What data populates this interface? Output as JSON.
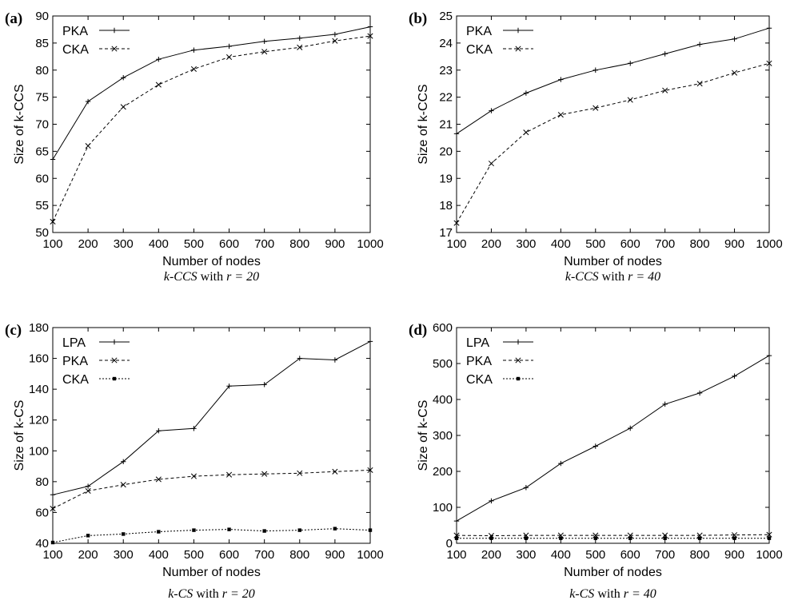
{
  "chart_data": [
    {
      "panel": "(a)",
      "type": "line",
      "categories": [
        "100",
        "200",
        "300",
        "400",
        "500",
        "600",
        "700",
        "800",
        "900",
        "1000"
      ],
      "x": [
        100,
        200,
        300,
        400,
        500,
        600,
        700,
        800,
        900,
        1000
      ],
      "xlim": [
        100,
        1000
      ],
      "ylim": [
        50,
        90
      ],
      "xticks": [
        100,
        200,
        300,
        400,
        500,
        600,
        700,
        800,
        900,
        1000
      ],
      "yticks": [
        50,
        55,
        60,
        65,
        70,
        75,
        80,
        85,
        90
      ],
      "xlabel": "Number of nodes",
      "ylabel": "Size of k-CCS",
      "caption": {
        "math1": "k-CCS",
        "text": " with ",
        "math2": "r = 20"
      },
      "legend_position": "top-left",
      "grid": false,
      "series": [
        {
          "name": "PKA",
          "style": "solid",
          "marker": "plus",
          "values": [
            63.5,
            74.2,
            78.6,
            82.0,
            83.7,
            84.4,
            85.3,
            85.9,
            86.6,
            88.0
          ]
        },
        {
          "name": "CKA",
          "style": "dashed",
          "marker": "x",
          "values": [
            52.0,
            66.0,
            73.2,
            77.3,
            80.2,
            82.4,
            83.4,
            84.2,
            85.4,
            86.3
          ]
        }
      ]
    },
    {
      "panel": "(b)",
      "type": "line",
      "categories": [
        "100",
        "200",
        "300",
        "400",
        "500",
        "600",
        "700",
        "800",
        "900",
        "1000"
      ],
      "x": [
        100,
        200,
        300,
        400,
        500,
        600,
        700,
        800,
        900,
        1000
      ],
      "xlim": [
        100,
        1000
      ],
      "ylim": [
        17,
        25
      ],
      "xticks": [
        100,
        200,
        300,
        400,
        500,
        600,
        700,
        800,
        900,
        1000
      ],
      "yticks": [
        17,
        18,
        19,
        20,
        21,
        22,
        23,
        24,
        25
      ],
      "xlabel": "Number of nodes",
      "ylabel": "Size of k-CCS",
      "caption": {
        "math1": "k-CCS",
        "text": " with ",
        "math2": "r = 40"
      },
      "legend_position": "top-left",
      "grid": false,
      "series": [
        {
          "name": "PKA",
          "style": "solid",
          "marker": "plus",
          "values": [
            20.65,
            21.5,
            22.15,
            22.65,
            23.0,
            23.25,
            23.6,
            23.95,
            24.15,
            24.55
          ]
        },
        {
          "name": "CKA",
          "style": "dashed",
          "marker": "x",
          "values": [
            17.35,
            19.55,
            20.7,
            21.35,
            21.6,
            21.9,
            22.25,
            22.5,
            22.9,
            23.25
          ]
        }
      ]
    },
    {
      "panel": "(c)",
      "type": "line",
      "categories": [
        "100",
        "200",
        "300",
        "400",
        "500",
        "600",
        "700",
        "800",
        "900",
        "1000"
      ],
      "x": [
        100,
        200,
        300,
        400,
        500,
        600,
        700,
        800,
        900,
        1000
      ],
      "xlim": [
        100,
        1000
      ],
      "ylim": [
        40,
        180
      ],
      "xticks": [
        100,
        200,
        300,
        400,
        500,
        600,
        700,
        800,
        900,
        1000
      ],
      "yticks": [
        40,
        60,
        80,
        100,
        120,
        140,
        160,
        180
      ],
      "xlabel": "Number of nodes",
      "ylabel": "Size of k-CS",
      "caption": {
        "math1": "k-CS",
        "text": " with ",
        "math2": "r = 20"
      },
      "legend_position": "top-left",
      "grid": false,
      "series": [
        {
          "name": "LPA",
          "style": "solid",
          "marker": "plus",
          "values": [
            71.5,
            77.0,
            93.0,
            113.0,
            114.5,
            142.0,
            143.0,
            160.0,
            159.0,
            171.0
          ]
        },
        {
          "name": "PKA",
          "style": "dashed",
          "marker": "x",
          "values": [
            62.5,
            74.0,
            78.0,
            81.5,
            83.5,
            84.5,
            85.0,
            85.5,
            86.5,
            87.5
          ]
        },
        {
          "name": "CKA",
          "style": "dotted",
          "marker": "square",
          "values": [
            40.5,
            45.0,
            46.0,
            47.5,
            48.5,
            49.0,
            48.0,
            48.5,
            49.5,
            48.5
          ]
        }
      ]
    },
    {
      "panel": "(d)",
      "type": "line",
      "categories": [
        "100",
        "200",
        "300",
        "400",
        "500",
        "600",
        "700",
        "800",
        "900",
        "1000"
      ],
      "x": [
        100,
        200,
        300,
        400,
        500,
        600,
        700,
        800,
        900,
        1000
      ],
      "xlim": [
        100,
        1000
      ],
      "ylim": [
        0,
        600
      ],
      "xticks": [
        100,
        200,
        300,
        400,
        500,
        600,
        700,
        800,
        900,
        1000
      ],
      "yticks": [
        0,
        100,
        200,
        300,
        400,
        500,
        600
      ],
      "xlabel": "Number of nodes",
      "ylabel": "Size of k-CS",
      "caption": {
        "math1": "k-CS",
        "text": " with ",
        "math2": "r = 40"
      },
      "legend_position": "top-left",
      "grid": false,
      "series": [
        {
          "name": "LPA",
          "style": "solid",
          "marker": "plus",
          "values": [
            62,
            118,
            155,
            222,
            270,
            320,
            387,
            418,
            465,
            522
          ]
        },
        {
          "name": "PKA",
          "style": "dashed",
          "marker": "x",
          "values": [
            22,
            21,
            22,
            22,
            22,
            22,
            22,
            22,
            23,
            24
          ]
        },
        {
          "name": "CKA",
          "style": "dotted",
          "marker": "square",
          "values": [
            14,
            14,
            14,
            14,
            14,
            14,
            14,
            14,
            14,
            14
          ]
        }
      ]
    }
  ]
}
